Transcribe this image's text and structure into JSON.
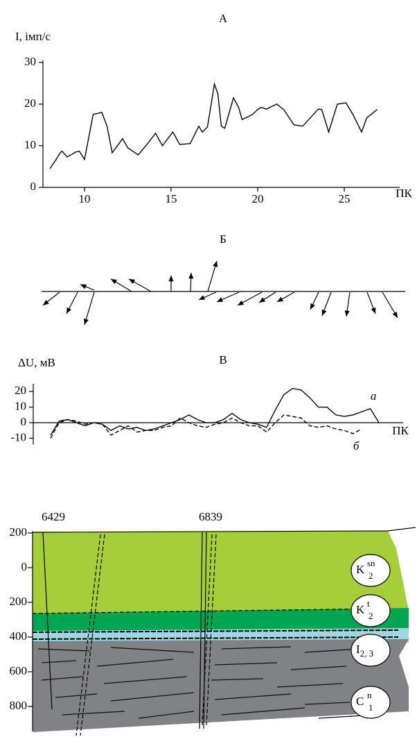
{
  "chart_data": [
    {
      "type": "line",
      "title": "А",
      "ylabel": "I, імп/с",
      "xlabel": "ПК",
      "color": "#000000",
      "x": [
        8.0,
        8.3,
        8.6,
        8.7,
        9.0,
        9.5,
        9.7,
        10.0,
        10.5,
        11.0,
        11.3,
        11.6,
        12.2,
        12.5,
        13.1,
        13.7,
        14.1,
        14.5,
        15.1,
        15.5,
        16.1,
        16.6,
        16.8,
        17.1,
        17.5,
        17.7,
        17.9,
        18.1,
        18.6,
        18.9,
        19.1,
        19.7,
        20.0,
        20.2,
        20.5,
        21.1,
        21.5,
        22.1,
        22.6,
        23.5,
        23.7,
        24.1,
        24.6,
        25.1,
        25.5,
        26.0,
        26.3,
        26.9
      ],
      "values": [
        4.5,
        6.3,
        8.3,
        8.7,
        7.3,
        8.5,
        8.7,
        6.7,
        17.5,
        18.0,
        14.7,
        8.3,
        11.7,
        9.5,
        7.8,
        10.8,
        13.0,
        10.0,
        13.3,
        10.3,
        10.5,
        14.7,
        13.3,
        14.5,
        24.8,
        22.5,
        14.7,
        14.2,
        21.5,
        19.2,
        16.3,
        17.5,
        18.7,
        19.2,
        18.8,
        20.0,
        18.7,
        15.0,
        14.7,
        18.8,
        18.7,
        13.3,
        20.0,
        20.3,
        17.5,
        13.3,
        16.7,
        18.7
      ],
      "xlim": [
        7.6,
        28.2
      ],
      "ylim": [
        0,
        30.5
      ],
      "xticks": [
        10,
        15,
        20,
        25
      ],
      "yticks": [
        0,
        10,
        20,
        30
      ]
    },
    {
      "type": "vector",
      "title": "Б"
    },
    {
      "type": "line",
      "title": "В",
      "ylabel": "ΔU, мВ",
      "xlabel": "ПК",
      "x": [
        8.0,
        8.5,
        9.0,
        9.5,
        10.0,
        10.5,
        11.0,
        11.5,
        12.0,
        12.5,
        13.0,
        13.5,
        14.0,
        14.5,
        15.0,
        15.5,
        16.0,
        16.5,
        17.0,
        17.5,
        18.0,
        18.5,
        19.0,
        19.5,
        20.0,
        20.5,
        21.0,
        21.5,
        22.0,
        22.5,
        23.0,
        23.5,
        24.0,
        24.5,
        25.0,
        25.5,
        26.0,
        26.5,
        27.0
      ],
      "series": [
        {
          "name": "а",
          "color": "#000000",
          "dash": "solid",
          "values": [
            -8,
            1,
            2,
            0,
            -2,
            0,
            -1,
            -5,
            -2,
            -4,
            -3,
            -5,
            -4,
            -2,
            0,
            2,
            5,
            2,
            0,
            0,
            2,
            6,
            2,
            0,
            -1,
            -3,
            8,
            18,
            22,
            21,
            16,
            10,
            10,
            5,
            4,
            5,
            7,
            9,
            0
          ]
        },
        {
          "name": "б",
          "color": "#000000",
          "dash": "dashed",
          "values": [
            -10,
            0,
            2,
            1,
            -1,
            0,
            -1,
            -8,
            -5,
            -2,
            -6,
            -5,
            -5,
            -3,
            -2,
            3,
            0,
            -2,
            -3,
            -1,
            0,
            3,
            0,
            -2,
            -2,
            -6,
            0,
            5,
            4,
            3,
            -2,
            -3,
            -2,
            -4,
            -5,
            -7,
            -4,
            null,
            null
          ]
        }
      ],
      "xlim": [
        7.0,
        28.4
      ],
      "ylim": [
        -14,
        25
      ],
      "yticks": [
        -10,
        0,
        10,
        20
      ]
    },
    {
      "type": "section",
      "ylim": [
        -210,
        940
      ],
      "yticks": [
        {
          "value": -200,
          "label": "200"
        },
        0,
        200,
        400,
        600,
        800
      ],
      "wells": [
        "6429",
        "6839"
      ],
      "layers": [
        {
          "base": "K",
          "sub": "2",
          "sup": "sn"
        },
        {
          "base": "K",
          "sub": "2",
          "sup": "t"
        },
        {
          "base": "I",
          "sub": "2, 3"
        },
        {
          "base": "C",
          "sub": "1",
          "sup": "n"
        }
      ]
    }
  ]
}
